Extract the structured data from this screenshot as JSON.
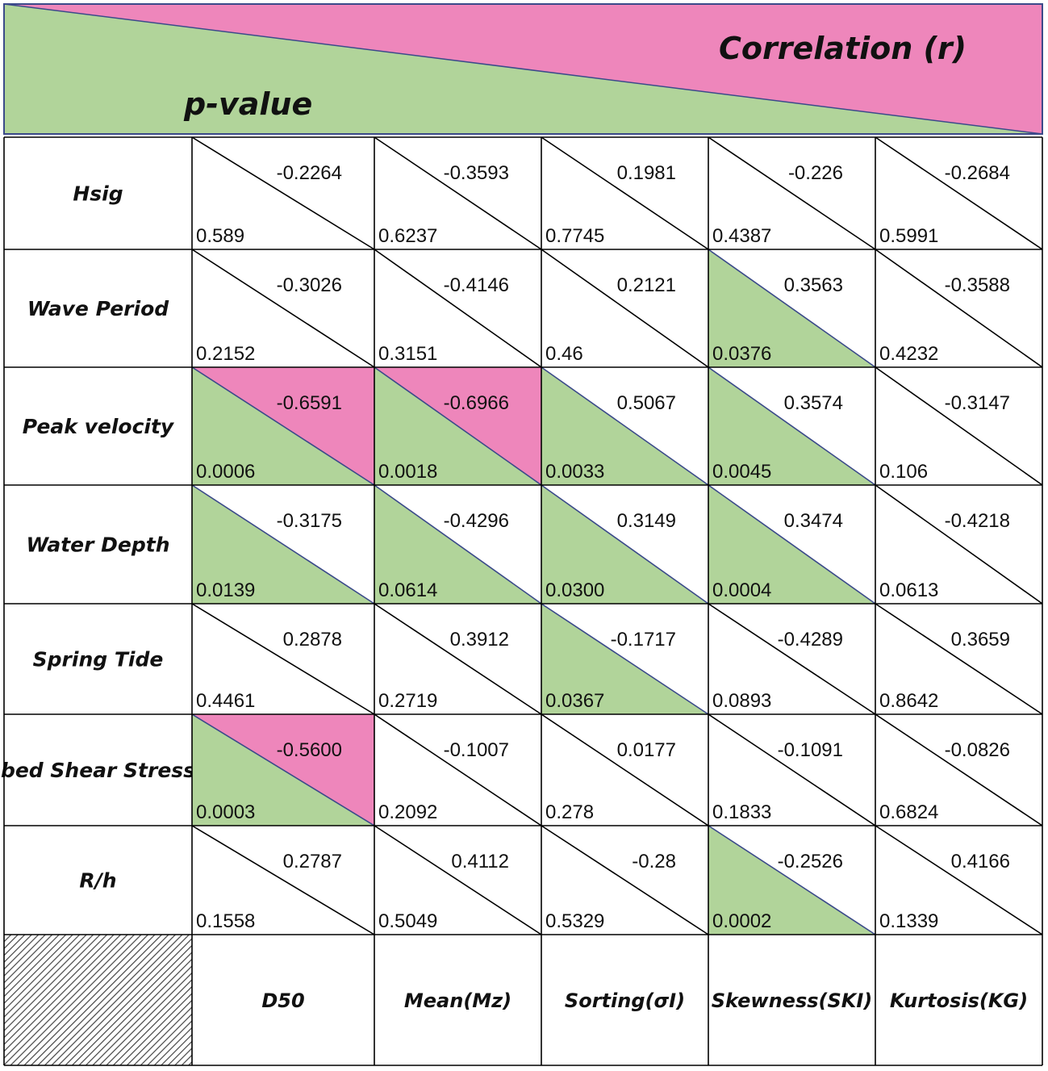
{
  "chart_data": {
    "type": "table",
    "header": {
      "upper_label": "Correlation (r)",
      "lower_label": "p-value"
    },
    "columns": [
      "D50",
      "Mean(Mz)",
      "Sorting(σI)",
      "Skewness(SKI)",
      "Kurtosis(KG)"
    ],
    "rows": [
      {
        "label": "Hsig",
        "r": [
          "-0.2264",
          "-0.3593",
          "0.1981",
          "-0.226",
          "-0.2684"
        ],
        "p": [
          "0.589",
          "0.6237",
          "0.7745",
          "0.4387",
          "0.5991"
        ],
        "p_sig": [
          false,
          false,
          false,
          false,
          false
        ],
        "r_sig": [
          false,
          false,
          false,
          false,
          false
        ]
      },
      {
        "label": "Wave Period",
        "r": [
          "-0.3026",
          "-0.4146",
          "0.2121",
          "0.3563",
          "-0.3588"
        ],
        "p": [
          "0.2152",
          "0.3151",
          "0.46",
          "0.0376",
          "0.4232"
        ],
        "p_sig": [
          false,
          false,
          false,
          true,
          false
        ],
        "r_sig": [
          false,
          false,
          false,
          false,
          false
        ]
      },
      {
        "label": "Peak velocity",
        "r": [
          "-0.6591",
          "-0.6966",
          "0.5067",
          "0.3574",
          "-0.3147"
        ],
        "p": [
          "0.0006",
          "0.0018",
          "0.0033",
          "0.0045",
          "0.106"
        ],
        "p_sig": [
          true,
          true,
          true,
          true,
          false
        ],
        "r_sig": [
          true,
          true,
          false,
          false,
          false
        ]
      },
      {
        "label": "Water Depth",
        "r": [
          "-0.3175",
          "-0.4296",
          "0.3149",
          "0.3474",
          "-0.4218"
        ],
        "p": [
          "0.0139",
          "0.0614",
          "0.0300",
          "0.0004",
          "0.0613"
        ],
        "p_sig": [
          true,
          true,
          true,
          true,
          false
        ],
        "r_sig": [
          false,
          false,
          false,
          false,
          false
        ]
      },
      {
        "label": "Spring Tide",
        "r": [
          "0.2878",
          "0.3912",
          "-0.1717",
          "-0.4289",
          "0.3659"
        ],
        "p": [
          "0.4461",
          "0.2719",
          "0.0367",
          "0.0893",
          "0.8642"
        ],
        "p_sig": [
          false,
          false,
          true,
          false,
          false
        ],
        "r_sig": [
          false,
          false,
          false,
          false,
          false
        ]
      },
      {
        "label": "bed Shear Stress",
        "r": [
          "-0.5600",
          "-0.1007",
          "0.0177",
          "-0.1091",
          "-0.0826"
        ],
        "p": [
          "0.0003",
          "0.2092",
          "0.278",
          "0.1833",
          "0.6824"
        ],
        "p_sig": [
          true,
          false,
          false,
          false,
          false
        ],
        "r_sig": [
          true,
          false,
          false,
          false,
          false
        ]
      },
      {
        "label": "R/h",
        "r": [
          "0.2787",
          "0.4112",
          "-0.28",
          "-0.2526",
          "0.4166"
        ],
        "p": [
          "0.1558",
          "0.5049",
          "0.5329",
          "0.0002",
          "0.1339"
        ],
        "p_sig": [
          false,
          false,
          false,
          true,
          false
        ],
        "r_sig": [
          false,
          false,
          false,
          false,
          false
        ]
      }
    ],
    "colors": {
      "p_highlight": "#b1d49a",
      "r_highlight": "#ee86bb",
      "grid": "#000000",
      "highlight_edge": "#3b4a8a"
    }
  }
}
